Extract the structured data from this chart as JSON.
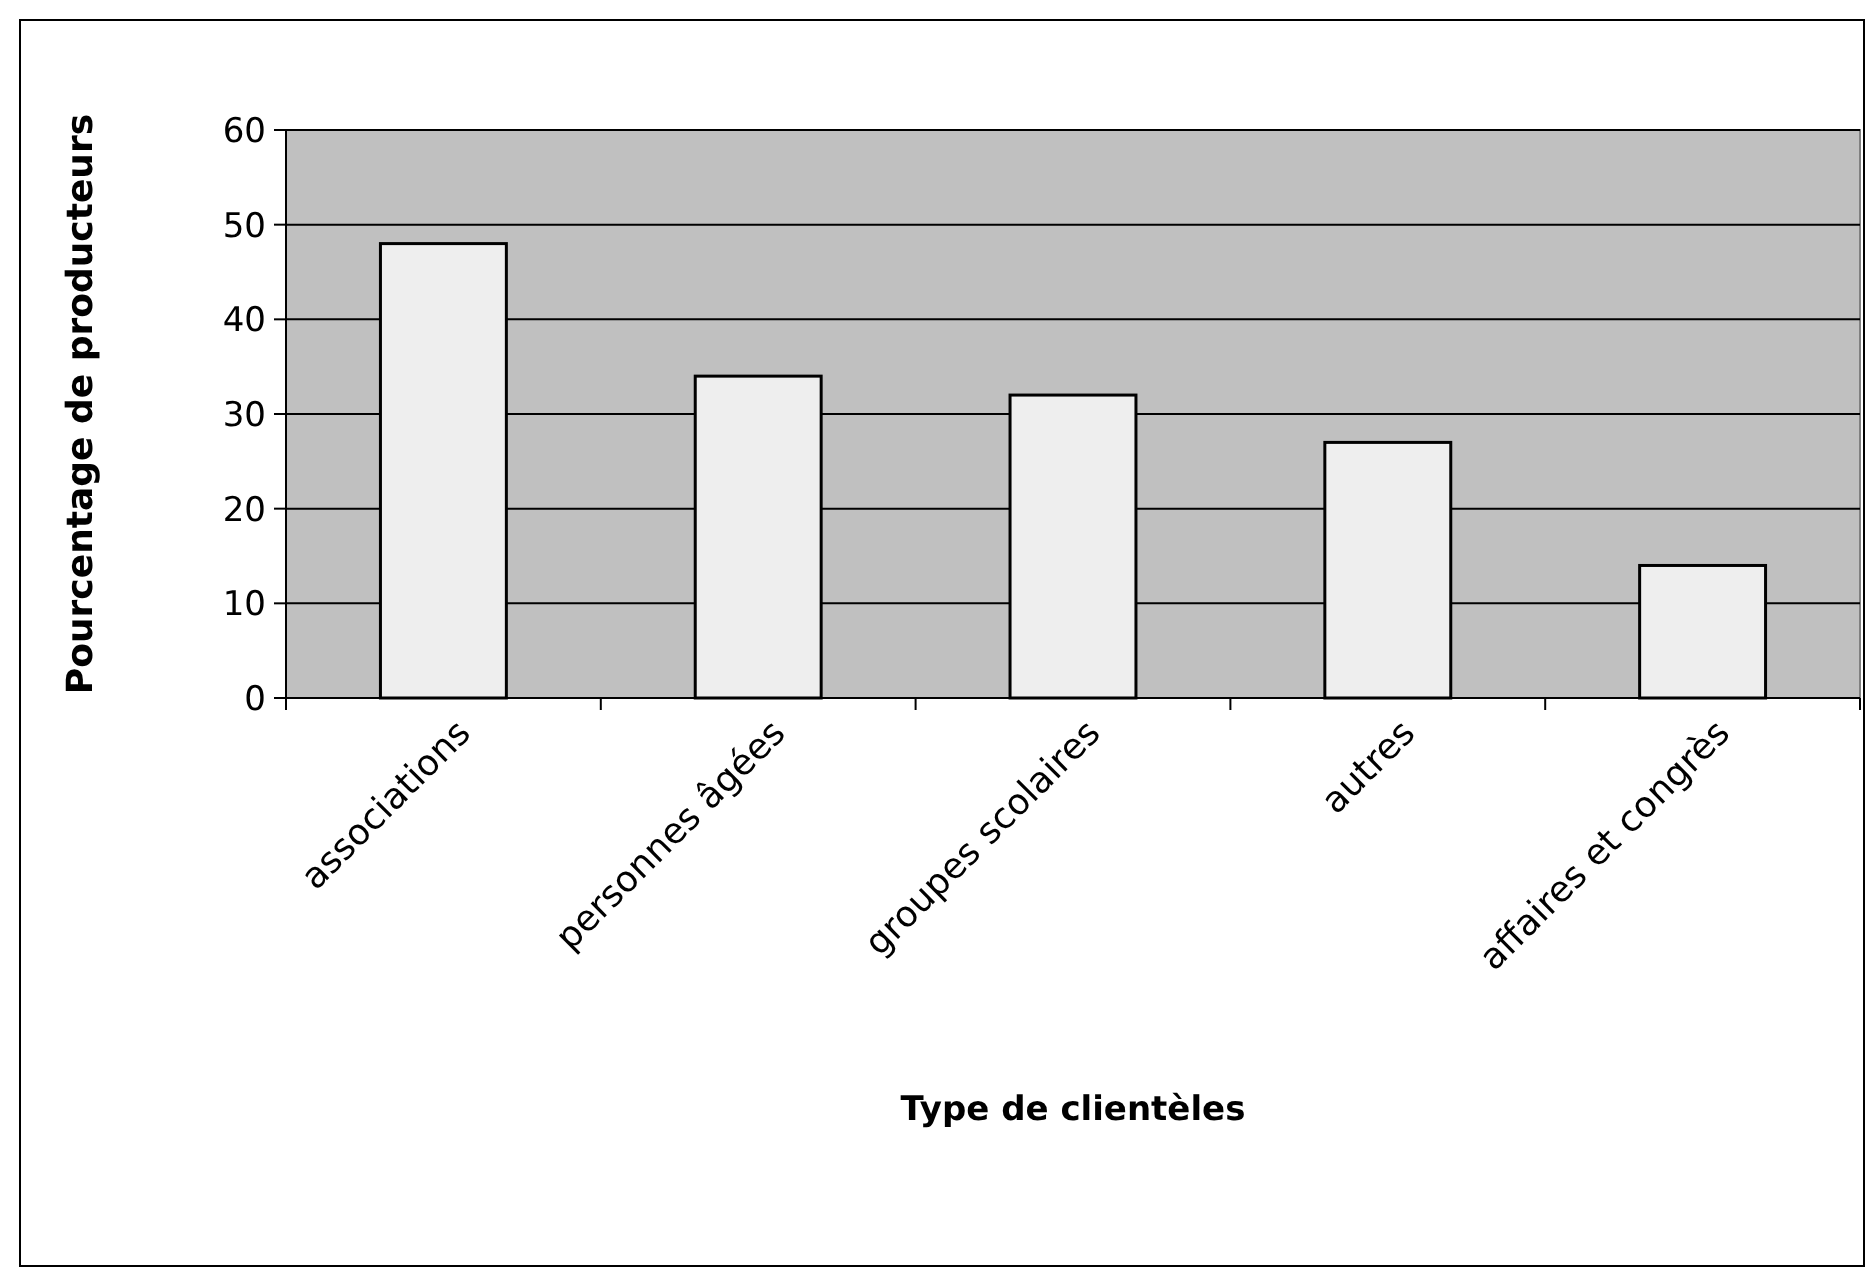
{
  "chart_data": {
    "type": "bar",
    "xlabel": "Type de clientèles",
    "ylabel": "Pourcentage de producteurs",
    "categories": [
      "associations",
      "personnes âgées",
      "groupes scolaires",
      "autres",
      "affaires et congrès"
    ],
    "values": [
      48,
      34,
      32,
      27,
      14
    ],
    "color": "#eeeeee",
    "ylim": [
      0,
      60
    ],
    "yticks": [
      0,
      10,
      20,
      30,
      40,
      50,
      60
    ],
    "grid": "y"
  }
}
